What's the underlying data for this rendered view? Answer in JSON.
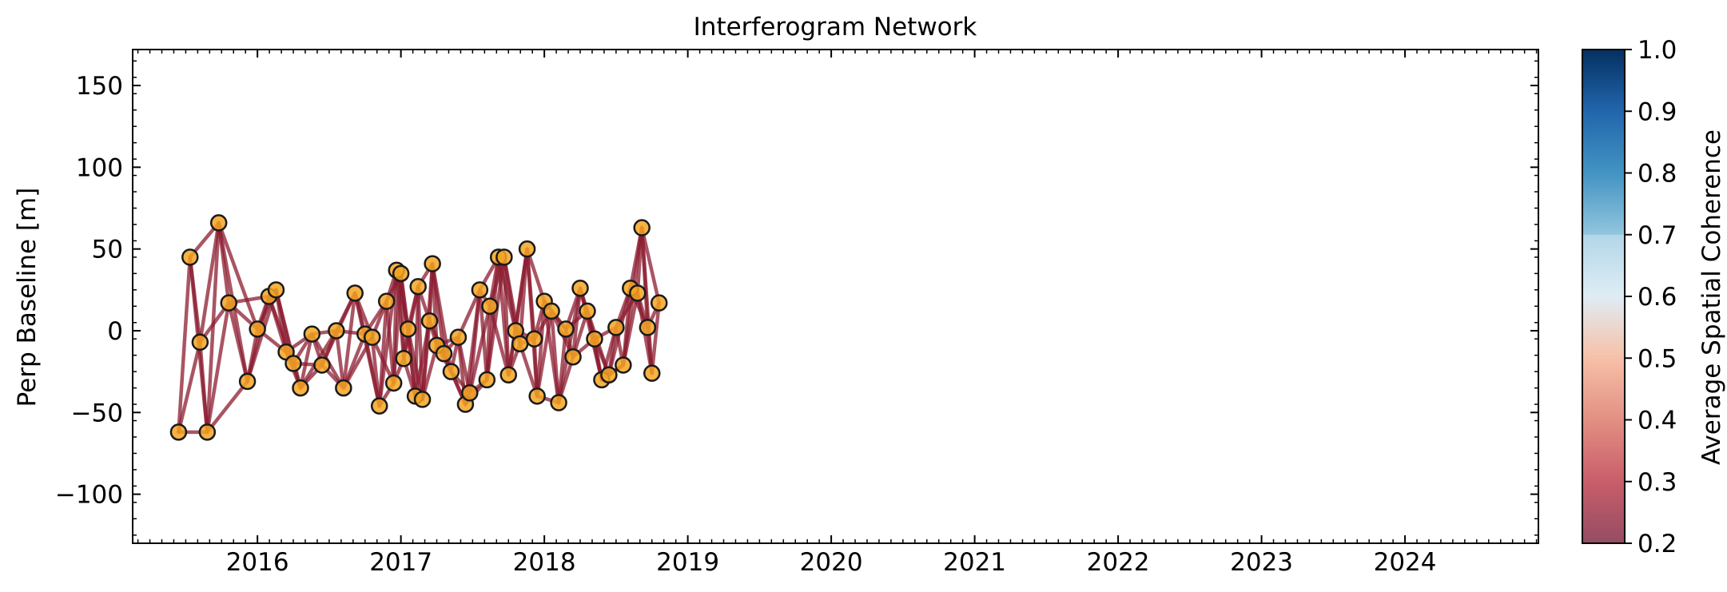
{
  "chart_data": {
    "type": "scatter",
    "title": "Interferogram Network",
    "xlabel": "",
    "ylabel": "Perp Baseline [m]",
    "xlim": [
      2015.13,
      2024.93
    ],
    "ylim": [
      -130,
      172
    ],
    "x_ticks": [
      2016,
      2017,
      2018,
      2019,
      2020,
      2021,
      2022,
      2023,
      2024
    ],
    "x_tick_labels": [
      "2016",
      "2017",
      "2018",
      "2019",
      "2020",
      "2021",
      "2022",
      "2023",
      "2024"
    ],
    "y_ticks": [
      -100,
      -50,
      0,
      50,
      100,
      150
    ],
    "y_tick_labels": [
      "−100",
      "−50",
      "0",
      "50",
      "100",
      "150"
    ],
    "grid": false,
    "point_color": "#f5a623",
    "point_edge_color": "#1a1a1a",
    "line_color": "#8c1c30",
    "colorbar": {
      "label": "Average Spatial Coherence",
      "range": [
        0.2,
        1.0
      ],
      "ticks": [
        0.2,
        0.3,
        0.4,
        0.5,
        0.6,
        0.7,
        0.8,
        0.9,
        1.0
      ],
      "tick_labels": [
        "0.2",
        "0.3",
        "0.4",
        "0.5",
        "0.6",
        "0.7",
        "0.8",
        "0.9",
        "1.0"
      ],
      "colormap": "RdBu",
      "colors": [
        "#67001f",
        "#b2182b",
        "#d6604d",
        "#f4a582",
        "#d1e5f0",
        "#92c5de",
        "#4393c3",
        "#2166ac",
        "#053061"
      ],
      "masked_range": [
        0.2,
        0.7
      ]
    },
    "series": [
      {
        "points": [
          [
            2015.45,
            -62
          ],
          [
            2015.53,
            45
          ],
          [
            2015.6,
            -7
          ],
          [
            2015.65,
            -62
          ],
          [
            2015.73,
            66
          ],
          [
            2015.8,
            17
          ],
          [
            2015.93,
            -31
          ],
          [
            2016.0,
            1
          ],
          [
            2016.08,
            21
          ],
          [
            2016.13,
            25
          ],
          [
            2016.2,
            -13
          ],
          [
            2016.25,
            -20
          ],
          [
            2016.3,
            -35
          ],
          [
            2016.38,
            -2
          ],
          [
            2016.45,
            -21
          ],
          [
            2016.55,
            0
          ],
          [
            2016.6,
            -35
          ],
          [
            2016.68,
            23
          ],
          [
            2016.75,
            -2
          ],
          [
            2016.8,
            -4
          ],
          [
            2016.85,
            -46
          ],
          [
            2016.9,
            18
          ],
          [
            2016.95,
            -32
          ],
          [
            2016.97,
            37
          ],
          [
            2017.0,
            35
          ],
          [
            2017.02,
            -17
          ],
          [
            2017.05,
            1
          ],
          [
            2017.1,
            -40
          ],
          [
            2017.12,
            27
          ],
          [
            2017.15,
            -42
          ],
          [
            2017.2,
            6
          ],
          [
            2017.22,
            41
          ],
          [
            2017.25,
            -9
          ],
          [
            2017.3,
            -14
          ],
          [
            2017.35,
            -25
          ],
          [
            2017.4,
            -4
          ],
          [
            2017.45,
            -45
          ],
          [
            2017.48,
            -38
          ],
          [
            2017.55,
            25
          ],
          [
            2017.6,
            -30
          ],
          [
            2017.62,
            15
          ],
          [
            2017.68,
            45
          ],
          [
            2017.72,
            45
          ],
          [
            2017.75,
            -27
          ],
          [
            2017.8,
            0
          ],
          [
            2017.83,
            -8
          ],
          [
            2017.88,
            50
          ],
          [
            2017.93,
            -5
          ],
          [
            2017.95,
            -40
          ],
          [
            2018.0,
            18
          ],
          [
            2018.05,
            12
          ],
          [
            2018.1,
            -44
          ],
          [
            2018.15,
            1
          ],
          [
            2018.2,
            -16
          ],
          [
            2018.25,
            26
          ],
          [
            2018.3,
            12
          ],
          [
            2018.35,
            -5
          ],
          [
            2018.4,
            -30
          ],
          [
            2018.45,
            -27
          ],
          [
            2018.5,
            2
          ],
          [
            2018.55,
            -21
          ],
          [
            2018.6,
            26
          ],
          [
            2018.65,
            23
          ],
          [
            2018.68,
            63
          ],
          [
            2018.72,
            2
          ],
          [
            2018.75,
            -26
          ],
          [
            2018.8,
            17
          ]
        ]
      }
    ]
  }
}
